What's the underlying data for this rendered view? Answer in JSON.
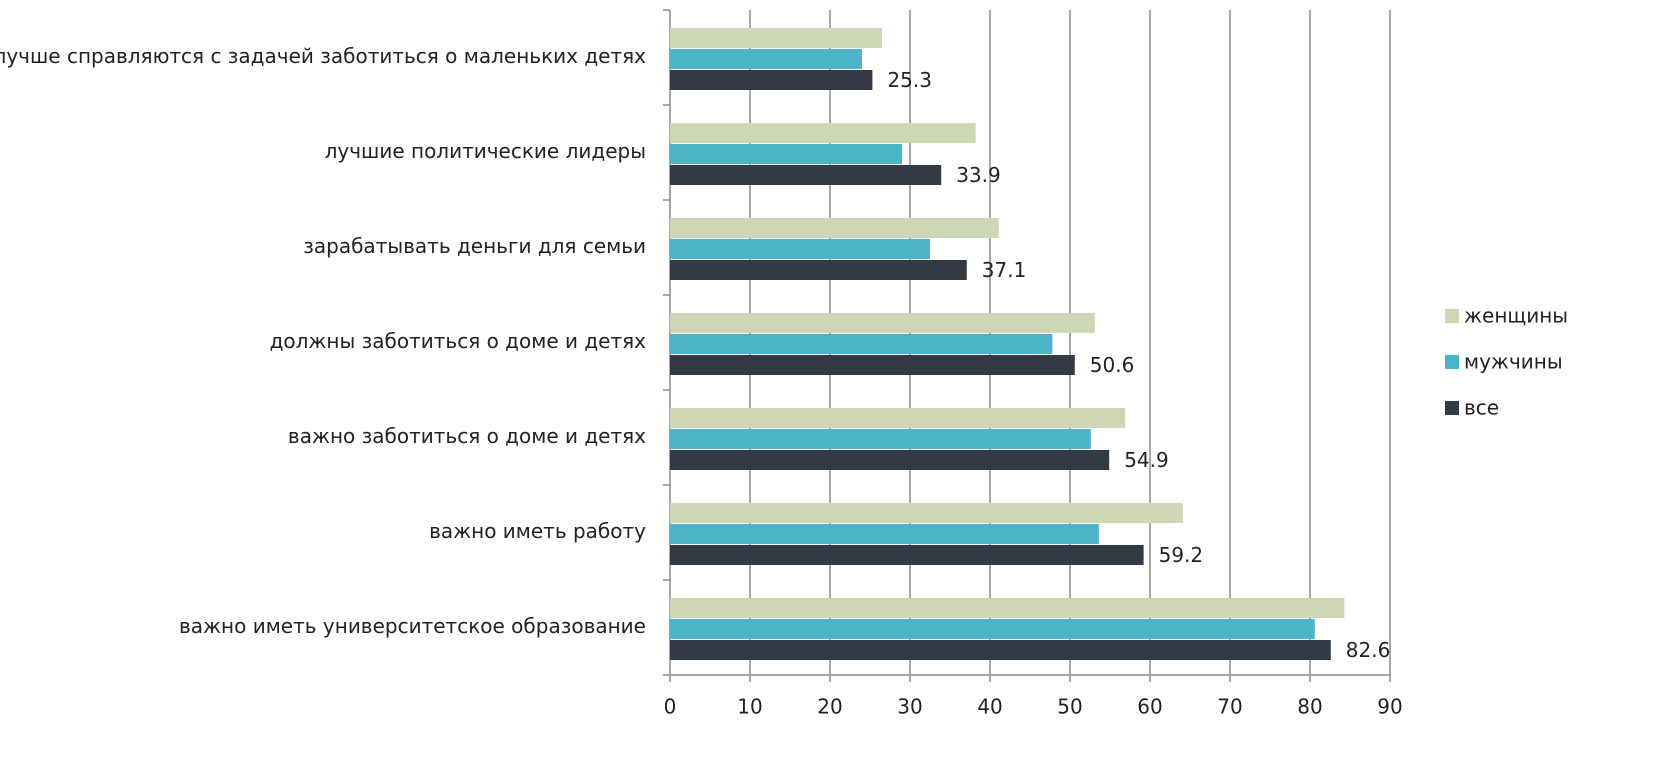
{
  "chart_data": {
    "type": "hbar",
    "categories": [
      "лучше справляются с задачей заботиться о маленьких детях",
      "лучшие политические лидеры",
      "зарабатывать деньги для семьи",
      "должны заботиться о доме и детях",
      "важно заботиться о доме и детях",
      "важно иметь работу",
      "важно иметь университетское образование"
    ],
    "series": [
      {
        "name": "женщины",
        "color": "#cdd7b6",
        "values": [
          26.5,
          38.2,
          41.1,
          53.1,
          56.9,
          64.1,
          84.3
        ]
      },
      {
        "name": "мужчины",
        "color": "#4bb4c8",
        "values": [
          24.0,
          29.0,
          32.5,
          47.8,
          52.6,
          53.6,
          80.6
        ]
      },
      {
        "name": "все",
        "color": "#323b45",
        "values": [
          25.3,
          33.9,
          37.1,
          50.6,
          54.9,
          59.2,
          82.6
        ],
        "show_labels": true
      }
    ],
    "xlim": [
      0,
      90
    ],
    "xticks": [
      0,
      10,
      20,
      30,
      40,
      50,
      60,
      70,
      80,
      90
    ],
    "grid": true,
    "legend": "right"
  }
}
